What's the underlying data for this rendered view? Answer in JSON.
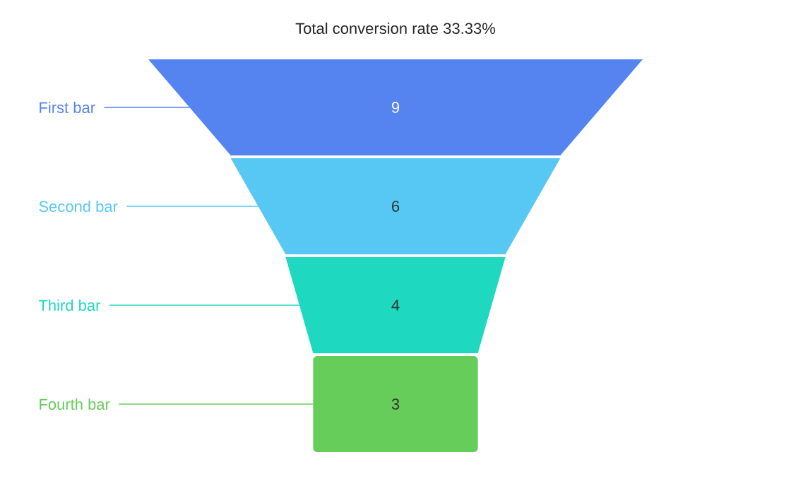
{
  "chart_data": {
    "type": "other",
    "title": "Total conversion rate 33.33%",
    "categories": [
      "First bar",
      "Second bar",
      "Third bar",
      "Fourth bar"
    ],
    "values": [
      9,
      6,
      4,
      3
    ],
    "colors": [
      "#5584f0",
      "#56c8f3",
      "#1fd8c0",
      "#66cc5a"
    ],
    "data_labels": true
  }
}
